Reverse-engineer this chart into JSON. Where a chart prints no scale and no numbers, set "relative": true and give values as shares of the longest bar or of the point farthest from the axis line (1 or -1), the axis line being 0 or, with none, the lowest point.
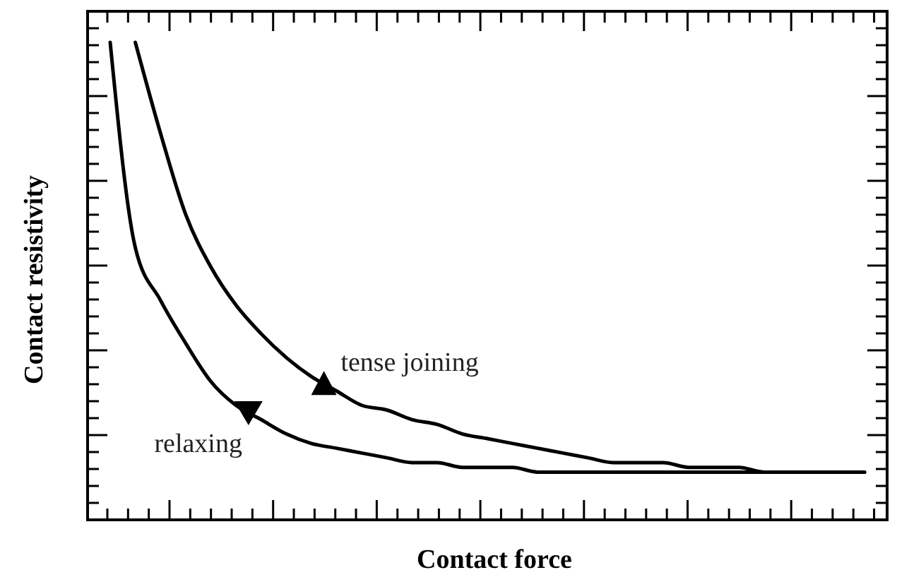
{
  "chart_data": {
    "type": "line",
    "relative": true,
    "xlabel": "Contact force",
    "ylabel": "Contact resistivity",
    "categories": [
      null,
      null,
      null,
      null,
      null,
      null,
      null,
      null,
      null,
      null,
      null,
      null,
      null,
      null,
      null,
      null,
      null,
      null,
      null,
      null,
      null,
      null,
      null,
      null,
      null,
      null,
      null,
      null,
      null,
      null,
      null
    ],
    "marker": "none",
    "line_style": "solid",
    "series": [
      {
        "name": "tense joining",
        "color": "#000000",
        "values": [
          null,
          1.0,
          0.81,
          0.64,
          0.53,
          0.45,
          0.39,
          0.34,
          0.3,
          0.27,
          0.24,
          0.23,
          0.21,
          0.2,
          0.18,
          0.17,
          0.16,
          0.15,
          0.14,
          0.13,
          0.12,
          0.12,
          0.12,
          0.11,
          0.11,
          0.11,
          0.1,
          0.1,
          0.1,
          0.1,
          0.1
        ]
      },
      {
        "name": "relaxing",
        "color": "#000000",
        "values": [
          1.0,
          0.57,
          0.46,
          0.37,
          0.29,
          0.24,
          0.21,
          0.18,
          0.16,
          0.15,
          0.14,
          0.13,
          0.12,
          0.12,
          0.11,
          0.11,
          0.11,
          0.1,
          0.1,
          0.1,
          0.1,
          0.1,
          0.1,
          0.1,
          0.1,
          0.1,
          0.1,
          0.1,
          0.1,
          0.1,
          0.1
        ]
      }
    ]
  }
}
